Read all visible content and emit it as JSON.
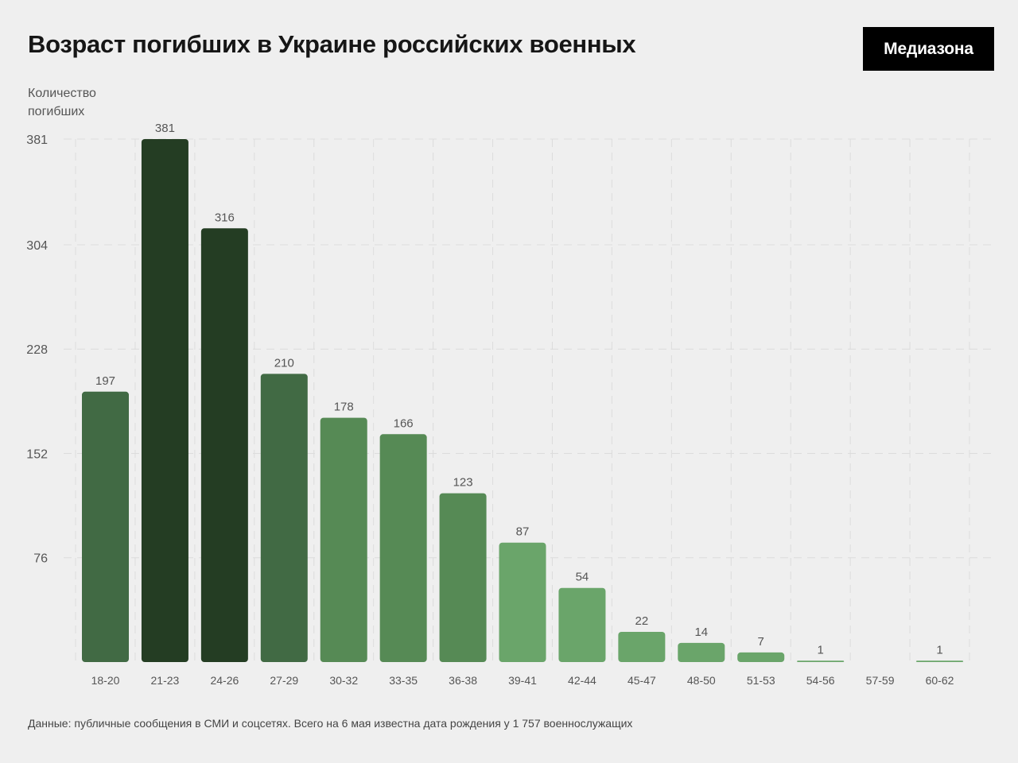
{
  "title": "Возраст погибших в Украине российских военных",
  "brand": "Медиазона",
  "ylabel_line1": "Количество",
  "ylabel_line2": "погибших",
  "note": "Данные: публичные сообщения в СМИ и соцсетях. Всего на 6 мая известна дата рождения у 1 757 военнослужащих",
  "colors": {
    "background": "#efefef",
    "darkest": "#243d23",
    "dark": "#416a44",
    "medium": "#568a55",
    "light": "#6aa56a",
    "grid": "#dcdcdc",
    "axis_text": "#555555",
    "value_text": "#555555"
  },
  "chart_data": {
    "type": "bar",
    "categories": [
      "18-20",
      "21-23",
      "24-26",
      "27-29",
      "30-32",
      "33-35",
      "36-38",
      "39-41",
      "42-44",
      "45-47",
      "48-50",
      "51-53",
      "54-56",
      "57-59",
      "60-62"
    ],
    "values": [
      197,
      381,
      316,
      210,
      178,
      166,
      123,
      87,
      54,
      22,
      14,
      7,
      1,
      0,
      1
    ],
    "value_labels": [
      "197",
      "381",
      "316",
      "210",
      "178",
      "166",
      "123",
      "87",
      "54",
      "22",
      "14",
      "7",
      "1",
      "",
      "1"
    ],
    "bar_shades": [
      "dark",
      "darkest",
      "darkest",
      "dark",
      "medium",
      "medium",
      "medium",
      "light",
      "light",
      "light",
      "light",
      "light",
      "light",
      "light",
      "light"
    ],
    "yticks": [
      76,
      152,
      228,
      304,
      381
    ],
    "ylim": [
      0,
      381
    ],
    "grid": true
  }
}
